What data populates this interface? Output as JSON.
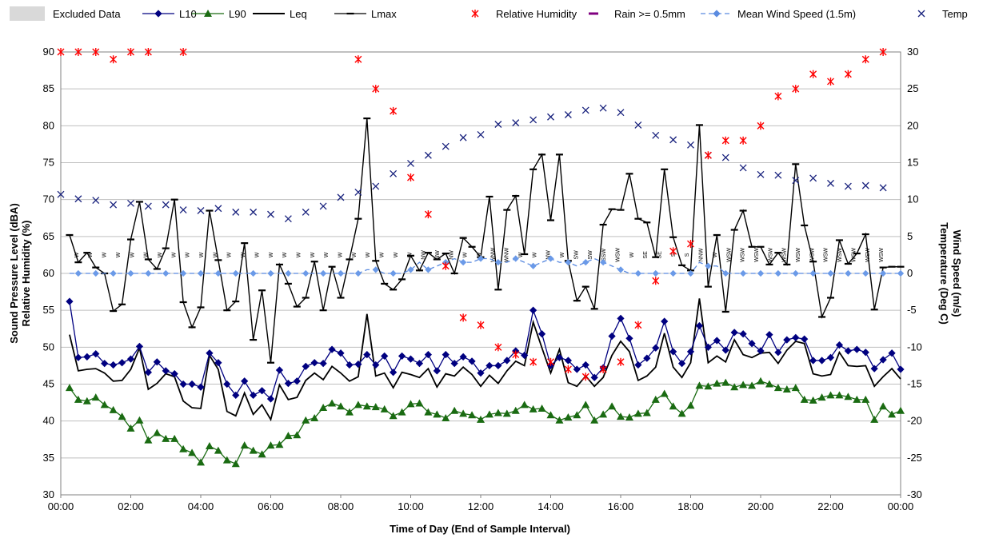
{
  "chart_data": {
    "type": "line",
    "xlabel": "Time of Day (End of Sample Interval)",
    "ylabel_left": [
      "Sound Pressure Level (dBA)",
      "Relative Humidity (%)"
    ],
    "ylabel_right": [
      "Wind Speed (m/s)",
      "Temperature (Deg C)"
    ],
    "ylim_left": [
      30,
      90
    ],
    "ylim_right": [
      -30,
      30
    ],
    "xlim_hours": [
      0,
      24
    ],
    "x_tick_labels": [
      "00:00",
      "02:00",
      "04:00",
      "06:00",
      "08:00",
      "10:00",
      "12:00",
      "14:00",
      "16:00",
      "18:00",
      "20:00",
      "22:00",
      "00:00"
    ],
    "y_left_ticks": [
      "30",
      "35",
      "40",
      "45",
      "50",
      "55",
      "60",
      "65",
      "70",
      "75",
      "80",
      "85",
      "90"
    ],
    "y_right_ticks": [
      "-30",
      "-25",
      "-20",
      "-15",
      "-10",
      "-5",
      "0",
      "5",
      "10",
      "15",
      "20",
      "25",
      "30"
    ],
    "interval_hours": 0.25,
    "legend": [
      {
        "label": "Excluded Data",
        "color": "#d9d9d9",
        "marker": "box"
      },
      {
        "label": "L10",
        "color": "#000080",
        "marker": "diamond"
      },
      {
        "label": "L90",
        "color": "#1a6b12",
        "marker": "triangle"
      },
      {
        "label": "Leq",
        "color": "#000000",
        "marker": "none"
      },
      {
        "label": "Lmax",
        "color": "#000000",
        "marker": "dash"
      },
      {
        "label": "Relative Humidity",
        "color": "#ff0000",
        "marker": "asterisk"
      },
      {
        "label": "Rain >= 0.5mm",
        "color": "#800080",
        "marker": "dash"
      },
      {
        "label": "Mean Wind Speed (1.5m)",
        "color": "#5b8be0",
        "marker": "diamond"
      },
      {
        "label": "Temp",
        "color": "#1a237e",
        "marker": "x"
      }
    ],
    "series": [
      {
        "name": "L10",
        "axis": "left",
        "values": [
          56.2,
          48.6,
          48.7,
          49.1,
          47.8,
          47.6,
          47.9,
          48.4,
          50.1,
          46.6,
          48.0,
          46.8,
          46.4,
          45.0,
          45.0,
          44.6,
          49.2,
          47.9,
          45.0,
          43.5,
          45.4,
          43.5,
          44.1,
          43.0,
          46.9,
          45.1,
          45.4,
          47.4,
          47.9,
          47.8,
          49.7,
          49.2,
          47.6,
          47.7,
          49.0,
          47.6,
          48.8,
          46.6,
          48.8,
          48.4,
          47.8,
          49.0,
          46.8,
          49.0,
          47.8,
          48.7,
          48.1,
          46.5,
          47.5,
          47.5,
          48.2,
          49.5,
          48.9,
          55.0,
          51.8,
          47.5,
          48.6,
          48.2,
          47.0,
          47.6,
          45.9,
          47.2,
          51.5,
          53.9,
          51.2,
          47.6,
          48.5,
          49.9,
          53.5,
          49.4,
          47.8,
          49.4,
          52.9,
          50.0,
          50.9,
          49.6,
          52.0,
          51.8,
          50.5,
          49.5,
          51.7,
          49.3,
          51.0,
          51.3,
          51.1,
          48.2,
          48.2,
          48.6,
          50.3,
          49.5,
          49.7,
          49.3,
          47.1,
          48.3,
          49.2,
          47.0
        ]
      },
      {
        "name": "L90",
        "axis": "left",
        "values": [
          44.5,
          42.9,
          42.7,
          43.2,
          42.2,
          41.5,
          40.6,
          39.0,
          40.1,
          37.4,
          38.4,
          37.6,
          37.6,
          36.2,
          35.7,
          34.4,
          36.6,
          36.0,
          34.7,
          34.2,
          36.7,
          36.0,
          35.5,
          36.7,
          36.8,
          38.0,
          38.1,
          40.1,
          40.4,
          41.8,
          42.4,
          42.0,
          41.2,
          42.2,
          42.0,
          41.9,
          41.6,
          40.7,
          41.2,
          42.3,
          42.4,
          41.2,
          40.9,
          40.4,
          41.4,
          41.0,
          40.8,
          40.2,
          40.9,
          41.1,
          41.0,
          41.4,
          42.2,
          41.6,
          41.7,
          40.8,
          40.1,
          40.5,
          40.8,
          42.2,
          40.1,
          40.9,
          42.0,
          40.6,
          40.5,
          41.0,
          41.1,
          42.9,
          43.7,
          42.0,
          41.0,
          42.1,
          44.8,
          44.7,
          45.1,
          45.2,
          44.6,
          44.9,
          44.8,
          45.4,
          45.0,
          44.5,
          44.3,
          44.5,
          42.9,
          42.8,
          43.2,
          43.5,
          43.5,
          43.3,
          42.9,
          42.9,
          40.2,
          42.0,
          40.9,
          41.4
        ]
      },
      {
        "name": "Leq",
        "axis": "left",
        "values": [
          51.7,
          46.8,
          47.0,
          47.1,
          46.5,
          45.4,
          45.5,
          47.0,
          49.9,
          44.3,
          45.1,
          46.4,
          46.0,
          42.7,
          41.8,
          41.7,
          48.9,
          47.0,
          41.3,
          40.7,
          43.8,
          40.9,
          42.2,
          40.2,
          44.9,
          42.9,
          43.2,
          45.5,
          46.5,
          45.6,
          47.4,
          46.5,
          45.4,
          46.0,
          54.5,
          46.1,
          46.5,
          44.5,
          46.6,
          46.3,
          45.9,
          47.1,
          44.6,
          46.4,
          46.1,
          47.3,
          46.3,
          44.7,
          46.2,
          45.1,
          46.8,
          48.1,
          47.5,
          53.4,
          49.9,
          46.5,
          49.7,
          45.2,
          44.7,
          46.1,
          44.7,
          45.9,
          48.9,
          50.8,
          49.4,
          45.5,
          46.1,
          47.3,
          51.9,
          47.3,
          45.9,
          47.9,
          56.6,
          47.9,
          48.8,
          48.0,
          51.0,
          49.0,
          48.6,
          49.2,
          49.3,
          47.8,
          49.6,
          50.8,
          50.5,
          46.4,
          46.1,
          46.3,
          49.3,
          47.5,
          47.4,
          47.5,
          44.7,
          46.0,
          47.1,
          45.7
        ]
      },
      {
        "name": "Lmax",
        "axis": "left",
        "values": [
          65.2,
          61.5,
          62.8,
          60.8,
          60.0,
          54.9,
          55.8,
          64.6,
          69.7,
          61.9,
          60.6,
          63.4,
          70.0,
          56.1,
          52.7,
          55.4,
          68.5,
          61.8,
          55.0,
          56.2,
          64.1,
          51.0,
          57.7,
          47.9,
          61.2,
          58.6,
          55.5,
          56.7,
          61.6,
          55.0,
          60.9,
          56.7,
          61.9,
          67.4,
          81.0,
          61.7,
          58.6,
          57.8,
          59.2,
          62.4,
          60.4,
          62.8,
          61.9,
          62.7,
          60.0,
          64.8,
          63.6,
          62.2,
          70.4,
          57.8,
          68.6,
          70.5,
          62.6,
          74.1,
          76.1,
          67.2,
          76.1,
          61.7,
          56.3,
          58.2,
          55.2,
          66.6,
          68.7,
          68.6,
          73.5,
          67.4,
          66.9,
          62.2,
          74.1,
          64.9,
          61.1,
          60.4,
          80.1,
          58.2,
          65.2,
          54.8,
          65.9,
          68.5,
          63.6,
          63.6,
          61.2,
          62.8,
          61.2,
          74.8,
          66.5,
          61.6,
          54.1,
          56.7,
          64.5,
          61.3,
          62.7,
          65.3,
          55.1,
          60.8,
          60.9,
          60.9
        ]
      },
      {
        "name": "Relative Humidity",
        "axis": "left",
        "hours": [
          0,
          0.5,
          1,
          1.5,
          2,
          2.5,
          3.5,
          8.5,
          9,
          9.5,
          10,
          10.5,
          11,
          11.5,
          12,
          12.5,
          13,
          13.5,
          14,
          14.5,
          15,
          15.5,
          16,
          16.5,
          17,
          17.5,
          18,
          18.5,
          19,
          19.5,
          20,
          20.5,
          21,
          21.5,
          22,
          22.5,
          23,
          23.5
        ],
        "values": [
          90,
          90,
          90,
          89,
          90,
          90,
          90,
          89,
          85,
          82,
          73,
          68,
          61,
          54,
          53,
          50,
          49,
          48,
          48,
          47,
          46,
          47,
          48,
          53,
          59,
          63,
          64,
          76,
          78,
          78,
          80,
          84,
          85,
          87,
          86,
          87,
          89,
          90
        ]
      },
      {
        "name": "Mean Wind Speed (1.5m)",
        "axis": "right",
        "values": [
          0,
          0,
          0,
          0,
          0,
          0,
          0,
          0,
          0,
          0,
          0,
          0,
          0,
          0,
          0,
          0,
          0,
          0,
          0,
          0,
          0,
          0,
          0,
          0,
          0,
          0,
          0,
          0,
          0,
          0,
          0,
          0,
          0,
          0,
          0.5,
          0.5,
          0,
          0,
          0,
          0.5,
          1.5,
          0.5,
          1,
          1.5,
          2,
          1.5,
          1.5,
          2,
          2,
          1.5,
          1.5,
          2,
          1.5,
          1,
          1.5,
          2,
          1.5,
          1.5,
          1,
          1.5,
          2,
          1.5,
          1,
          0.5,
          0,
          0,
          0,
          0,
          0,
          0,
          0,
          0,
          1.5,
          1,
          1,
          0,
          0,
          0,
          0,
          0,
          0,
          0,
          0,
          0,
          0,
          0,
          0,
          0,
          0,
          0,
          0,
          0,
          0,
          0,
          0,
          0
        ]
      },
      {
        "name": "Temp",
        "axis": "right",
        "hours": [
          0,
          0.5,
          1,
          1.5,
          2,
          2.5,
          3,
          3.5,
          4,
          4.5,
          5,
          5.5,
          6,
          6.5,
          7,
          7.5,
          8,
          8.5,
          9,
          9.5,
          10,
          10.5,
          11,
          11.5,
          12,
          12.5,
          13,
          13.5,
          14,
          14.5,
          15,
          15.5,
          16,
          16.5,
          17,
          17.5,
          18,
          18.5,
          19,
          19.5,
          20,
          20.5,
          21,
          21.5,
          22,
          22.5,
          23,
          23.5
        ],
        "values": [
          10.7,
          10.1,
          9.9,
          9.3,
          9.5,
          9.1,
          9.3,
          8.6,
          8.5,
          8.8,
          8.3,
          8.3,
          8.0,
          7.4,
          8.3,
          9.1,
          10.3,
          11.0,
          11.8,
          13.5,
          14.9,
          16.0,
          17.2,
          18.4,
          18.8,
          20.2,
          20.4,
          20.8,
          21.2,
          21.5,
          22.1,
          22.4,
          21.8,
          20.1,
          18.7,
          18.1,
          17.4,
          16.0,
          15.7,
          14.3,
          13.4,
          13.3,
          12.6,
          12.9,
          12.2,
          11.8,
          11.9,
          11.6
        ]
      }
    ],
    "wind_direction_labels": [
      "W",
      "W",
      "W",
      "W",
      "W",
      "W",
      "W",
      "W",
      "W",
      "W",
      "W",
      "W",
      "W",
      "W",
      "W",
      "W",
      "W",
      "W",
      "W",
      "W",
      "W",
      "W",
      "W",
      "W",
      "W",
      "NW",
      "NW",
      "NW",
      "W",
      "W",
      "WNW",
      "WNW",
      "W",
      "W",
      "NW",
      "W",
      "SW",
      "SW",
      "SSW",
      "WSW",
      "W",
      "SE",
      "SE",
      "S",
      "S",
      "NNW",
      "W",
      "WSW",
      "WSW",
      "WSW",
      "WSW",
      "WSW",
      "WSW",
      "WSW",
      "WSW",
      "WSW",
      "WSW",
      "WSW",
      "WSW"
    ]
  }
}
